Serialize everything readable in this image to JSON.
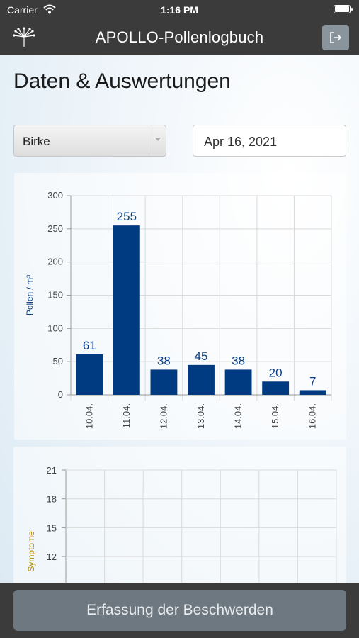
{
  "status_bar": {
    "carrier": "Carrier",
    "time": "1:16 PM"
  },
  "nav": {
    "title": "APOLLO-Pollenlogbuch",
    "logo_icon": "dandelion-seed-icon",
    "exit_icon": "logout-icon"
  },
  "page": {
    "title": "Daten & Auswertungen"
  },
  "filters": {
    "pollen_type": "Birke",
    "date": "Apr 16, 2021"
  },
  "colors": {
    "bar": "#003a80",
    "label": "#0a3f86",
    "symptom_axis": "#b58a00",
    "bar_background": "#3b3b3b"
  },
  "chart_data": [
    {
      "type": "bar",
      "categories": [
        "10.04.",
        "11.04.",
        "12.04.",
        "13.04.",
        "14.04.",
        "15.04.",
        "16.04."
      ],
      "values": [
        61,
        255,
        38,
        45,
        38,
        20,
        7
      ],
      "ylabel": "Pollen / m³",
      "ylim": [
        0,
        300
      ],
      "yticks": [
        0,
        50,
        100,
        150,
        200,
        250,
        300
      ],
      "grid": true,
      "data_labels": true
    },
    {
      "type": "bar",
      "ylabel": "Symptome",
      "ylim": [
        0,
        21
      ],
      "yticks_visible": [
        12,
        15,
        18,
        21
      ],
      "grid": true
    }
  ],
  "footer": {
    "button_label": "Erfassung der Beschwerden"
  }
}
